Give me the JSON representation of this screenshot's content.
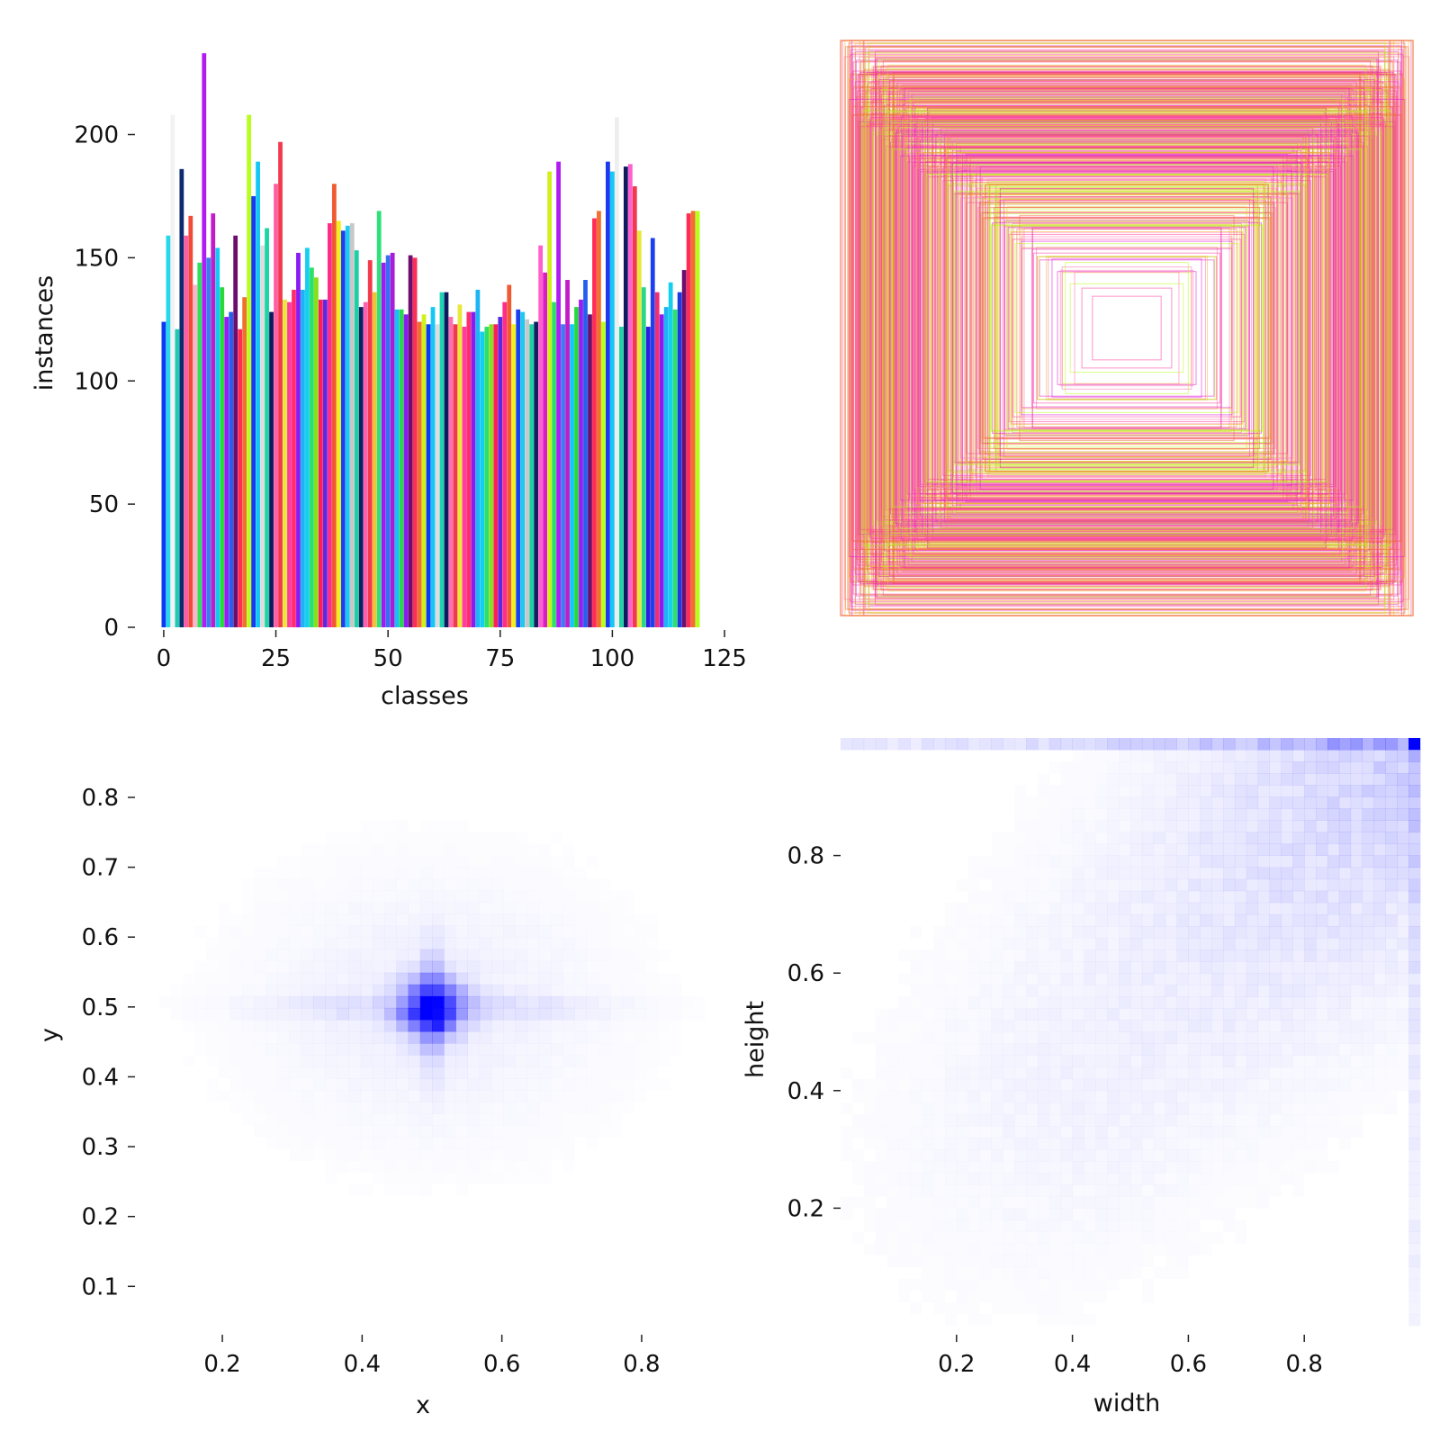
{
  "chart_data": [
    {
      "type": "bar",
      "xlabel": "classes",
      "ylabel": "instances",
      "xlim": [
        -6,
        126
      ],
      "ylim": [
        0,
        240
      ],
      "xticks": [
        0,
        25,
        50,
        75,
        100,
        125
      ],
      "yticks": [
        0,
        50,
        100,
        150,
        200
      ],
      "grid": false,
      "categories": [
        0,
        1,
        2,
        3,
        4,
        5,
        6,
        7,
        8,
        9,
        10,
        11,
        12,
        13,
        14,
        15,
        16,
        17,
        18,
        19,
        20,
        21,
        22,
        23,
        24,
        25,
        26,
        27,
        28,
        29,
        30,
        31,
        32,
        33,
        34,
        35,
        36,
        37,
        38,
        39,
        40,
        41,
        42,
        43,
        44,
        45,
        46,
        47,
        48,
        49,
        50,
        51,
        52,
        53,
        54,
        55,
        56,
        57,
        58,
        59,
        60,
        61,
        62,
        63,
        64,
        65,
        66,
        67,
        68,
        69,
        70,
        71,
        72,
        73,
        74,
        75,
        76,
        77,
        78,
        79,
        80,
        81,
        82,
        83,
        84,
        85,
        86,
        87,
        88,
        89,
        90,
        91,
        92,
        93,
        94,
        95,
        96,
        97,
        98,
        99,
        100,
        101,
        102,
        103,
        104,
        105,
        106,
        107,
        108,
        109,
        110,
        111,
        112,
        113,
        114,
        115,
        116,
        117,
        118,
        119
      ],
      "values": [
        124,
        159,
        208,
        121,
        186,
        159,
        167,
        139,
        148,
        233,
        150,
        168,
        154,
        138,
        126,
        128,
        159,
        121,
        134,
        208,
        175,
        189,
        155,
        162,
        128,
        180,
        197,
        133,
        132,
        137,
        152,
        137,
        154,
        146,
        142,
        133,
        133,
        164,
        180,
        165,
        161,
        163,
        164,
        153,
        130,
        132,
        149,
        136,
        169,
        148,
        151,
        152,
        129,
        129,
        127,
        151,
        150,
        124,
        127,
        123,
        130,
        123,
        136,
        136,
        126,
        123,
        131,
        122,
        128,
        128,
        137,
        120,
        122,
        123,
        123,
        126,
        132,
        139,
        123,
        129,
        128,
        125,
        123,
        124,
        155,
        144,
        185,
        132,
        189,
        123,
        141,
        123,
        130,
        133,
        141,
        127,
        166,
        169,
        124,
        189,
        185,
        207,
        122,
        187,
        188,
        179,
        161,
        138,
        122,
        158,
        136,
        127,
        130,
        140,
        129,
        136,
        145,
        168,
        169,
        169
      ],
      "colors": [
        "#0d3bf4",
        "#27d8ea",
        "#f2f2f2",
        "#1ecbb2",
        "#0d2b6e",
        "#ff5fa2",
        "#f24a3a",
        "#ffb3c8",
        "#2ee05a",
        "#b01cf2",
        "#3a7cf2",
        "#c21cc9",
        "#14c8f5",
        "#27d83e",
        "#9a1cf2",
        "#2460f0",
        "#6b0e6e",
        "#ff2d55",
        "#f07030",
        "#b8ff1c",
        "#1a39f0",
        "#14c8f5",
        "#dddddd",
        "#1cd4a4",
        "#0d1a60",
        "#ff5fa2",
        "#f23a4e",
        "#e8e838",
        "#ff3aa0",
        "#ff2d70",
        "#8a1cf2",
        "#1cb4f5",
        "#14d0f0",
        "#2ee06a",
        "#86e01c",
        "#ff1c5a",
        "#5a2ae0",
        "#ff2d8a",
        "#f05a30",
        "#f0f01c",
        "#1c40f0",
        "#1ccaf0",
        "#c8c8c8",
        "#1ccfa4",
        "#0d2060",
        "#ff5fae",
        "#f23a4a",
        "#f0c238",
        "#2ee07a",
        "#9e1cf2",
        "#3a6ef2",
        "#aa1cd8",
        "#14c0f5",
        "#27d84a",
        "#8a1cf2",
        "#6b0e6e",
        "#ff2d55",
        "#f07030",
        "#d0f01c",
        "#0d3bf4",
        "#14c8f5",
        "#dddddd",
        "#1cd4b2",
        "#0d1a60",
        "#ff6fb2",
        "#f23a4e",
        "#e8e838",
        "#ff3aa0",
        "#ff2d70",
        "#8a1cf2",
        "#1cb4f5",
        "#14d0f0",
        "#2ee06a",
        "#86e01c",
        "#ff1c5a",
        "#5a2ae0",
        "#ff2d8a",
        "#f05a30",
        "#f0f01c",
        "#1c40f0",
        "#1ccaf0",
        "#c8c8c8",
        "#1ccfa4",
        "#0d2060",
        "#ff5fce",
        "#d91cc8",
        "#d0f01c",
        "#2ee06a",
        "#b01cf2",
        "#3a7cf2",
        "#c21cc9",
        "#14c8f5",
        "#27d83e",
        "#9a1cf2",
        "#2460f0",
        "#6b0e6e",
        "#ff2d55",
        "#f07030",
        "#b8ff1c",
        "#1a39f0",
        "#14c8f5",
        "#eeeeee",
        "#1cd4a4",
        "#0d1a60",
        "#ff5fcf",
        "#f23a4e",
        "#e8e838",
        "#27d88a",
        "#2e1ce0",
        "#1c40f0",
        "#f02d70",
        "#8a1cf2",
        "#1cb4f5",
        "#14d0f0",
        "#2ee06a",
        "#1c3ae0",
        "#6b0e6e",
        "#ff2d55",
        "#f07030",
        "#b8ff1c"
      ]
    },
    {
      "type": "other",
      "kind": "box-outline-overlay",
      "colors": [
        "#ff3aa0",
        "#e01cd2",
        "#f0c238",
        "#b8ff1c",
        "#f07030",
        "#ff6fb2"
      ]
    },
    {
      "type": "heatmap",
      "xlabel": "x",
      "ylabel": "y",
      "xlim": [
        0.075,
        0.925
      ],
      "ylim": [
        0.045,
        0.885
      ],
      "xticks": [
        0.2,
        0.4,
        0.6,
        0.8
      ],
      "yticks": [
        0.1,
        0.2,
        0.3,
        0.4,
        0.5,
        0.6,
        0.7,
        0.8
      ],
      "bins": 50,
      "peak": [
        0.5,
        0.5
      ],
      "color": "#0000ff"
    },
    {
      "type": "heatmap",
      "xlabel": "width",
      "ylabel": "height",
      "xlim": [
        0.0,
        1.0
      ],
      "ylim": [
        0.0,
        1.0
      ],
      "xticks": [
        0.2,
        0.4,
        0.6,
        0.8
      ],
      "yticks": [
        0.2,
        0.4,
        0.6,
        0.8
      ],
      "bins": 50,
      "peak": [
        1.0,
        1.0
      ],
      "color": "#0000ff"
    }
  ]
}
